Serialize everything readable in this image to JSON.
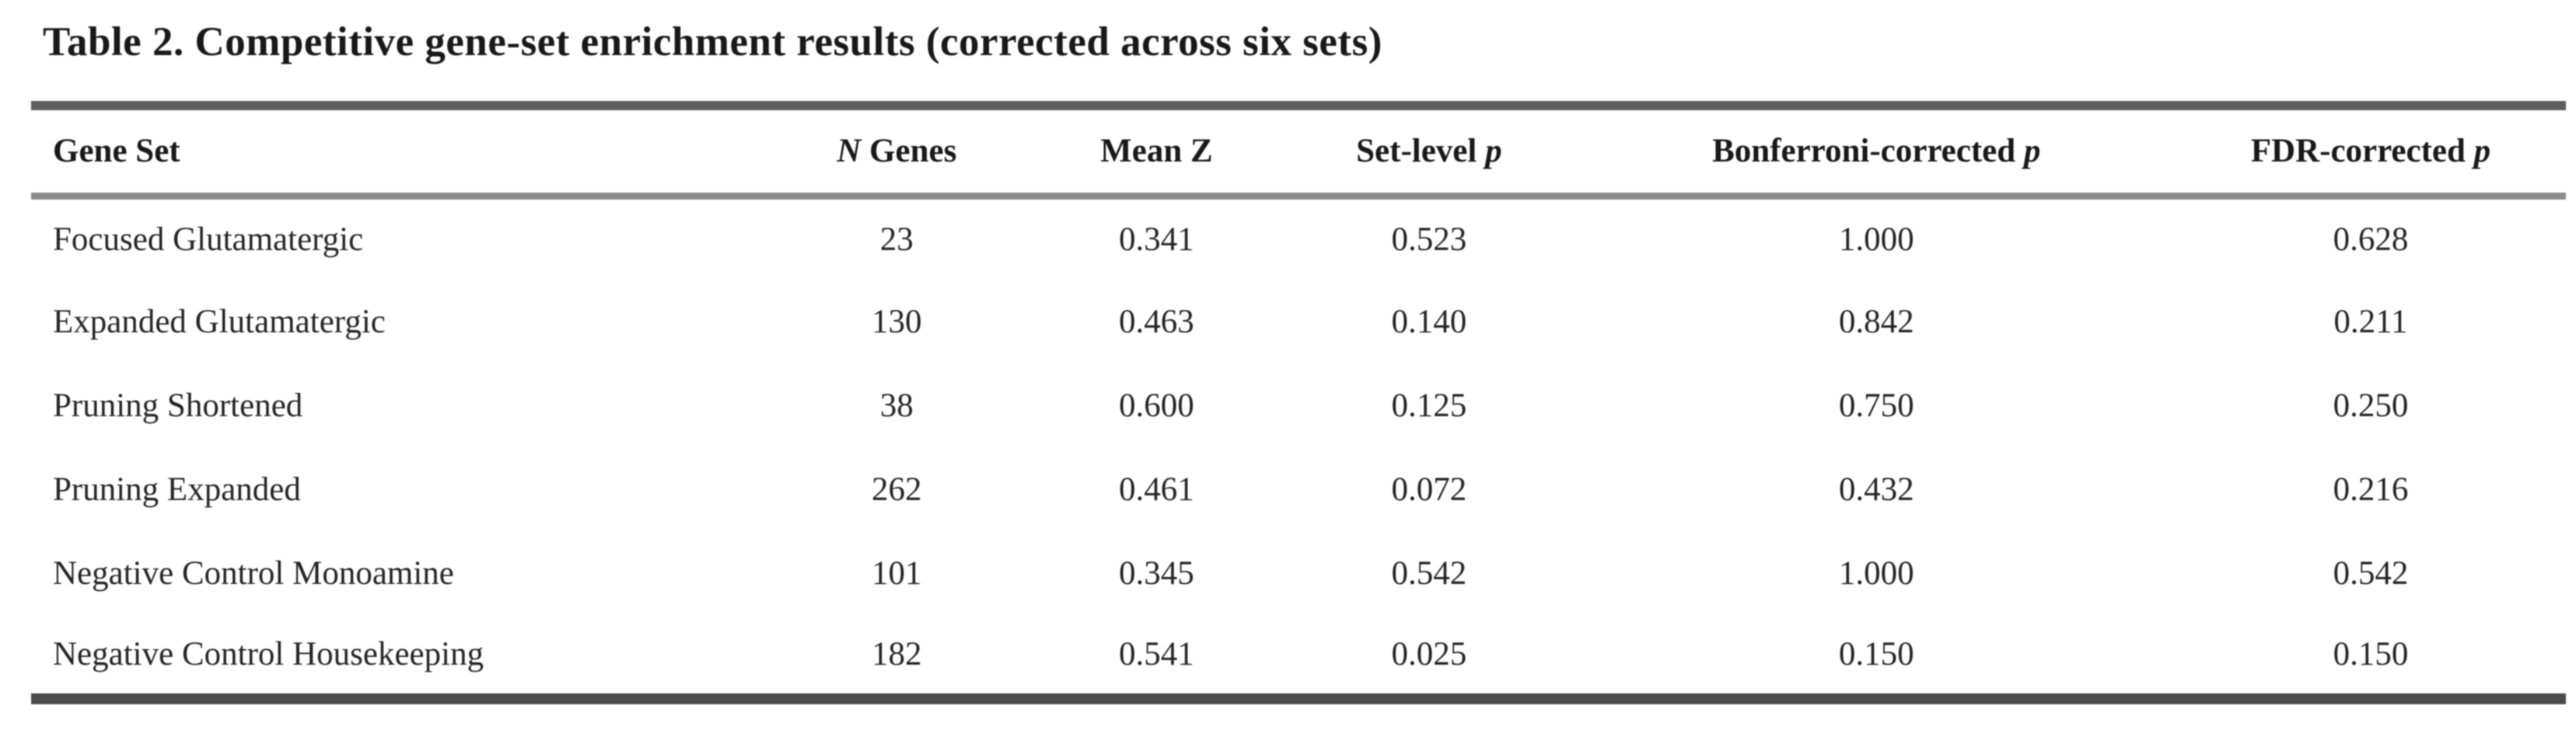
{
  "title": "Table 2. Competitive gene-set enrichment results (corrected across six sets)",
  "header": {
    "gene_set": "Gene Set",
    "n_genes_italic": "N",
    "n_genes_rest": " Genes",
    "mean_z": "Mean Z",
    "set_level_prefix": "Set-level ",
    "set_level_italic": "p",
    "bonferroni_prefix": "Bonferroni-corrected ",
    "bonferroni_italic": "p",
    "fdr_prefix": "FDR-corrected ",
    "fdr_italic": "p"
  },
  "rows": [
    {
      "gene_set": "Focused Glutamatergic",
      "n_genes": "23",
      "mean_z": "0.341",
      "set_level_p": "0.523",
      "bonferroni_p": "1.000",
      "fdr_p": "0.628"
    },
    {
      "gene_set": "Expanded Glutamatergic",
      "n_genes": "130",
      "mean_z": "0.463",
      "set_level_p": "0.140",
      "bonferroni_p": "0.842",
      "fdr_p": "0.211"
    },
    {
      "gene_set": "Pruning Shortened",
      "n_genes": "38",
      "mean_z": "0.600",
      "set_level_p": "0.125",
      "bonferroni_p": "0.750",
      "fdr_p": "0.250"
    },
    {
      "gene_set": "Pruning Expanded",
      "n_genes": "262",
      "mean_z": "0.461",
      "set_level_p": "0.072",
      "bonferroni_p": "0.432",
      "fdr_p": "0.216"
    },
    {
      "gene_set": "Negative Control Monoamine",
      "n_genes": "101",
      "mean_z": "0.345",
      "set_level_p": "0.542",
      "bonferroni_p": "1.000",
      "fdr_p": "0.542"
    },
    {
      "gene_set": "Negative Control Housekeeping",
      "n_genes": "182",
      "mean_z": "0.541",
      "set_level_p": "0.025",
      "bonferroni_p": "0.150",
      "fdr_p": "0.150"
    }
  ],
  "colors": {
    "background": "#fdfdfd",
    "text": "#262626",
    "rule_top": "#5f5f5f",
    "rule_header": "#8c8c8c",
    "rule_bottom": "#4d4d4d"
  }
}
